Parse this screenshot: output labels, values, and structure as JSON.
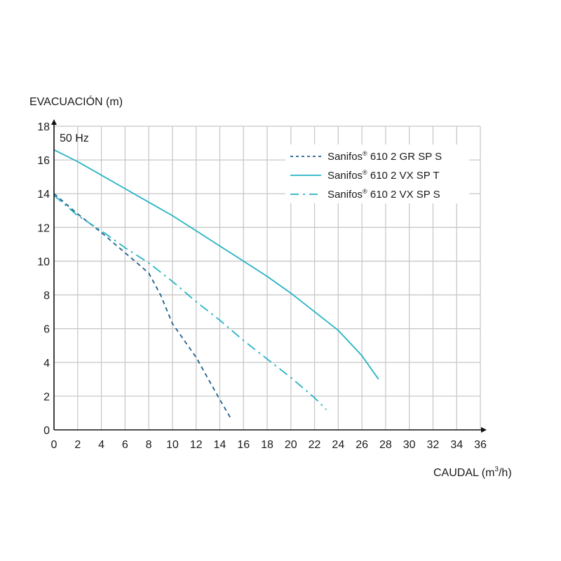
{
  "chart_data": {
    "type": "line",
    "ylabel": "EVACUACIÓN (m)",
    "xlabel_main": "CAUDAL (m",
    "xlabel_sup": "3",
    "xlabel_end": "/h)",
    "annotation": "50 Hz",
    "xlim": [
      0,
      36
    ],
    "ylim": [
      0,
      18
    ],
    "x_ticks": [
      0,
      2,
      4,
      6,
      8,
      10,
      12,
      14,
      16,
      18,
      20,
      22,
      24,
      26,
      28,
      30,
      32,
      34,
      36
    ],
    "y_ticks": [
      0,
      2,
      4,
      6,
      8,
      10,
      12,
      14,
      16,
      18
    ],
    "grid": true,
    "legend_position": "top-right",
    "series": [
      {
        "name_main": "Sanifos",
        "name_sup": "®",
        "name_rest": " 610 2 GR SP S",
        "style": "dashed",
        "color": "#1f5f8b",
        "points": [
          [
            0,
            14.0
          ],
          [
            2,
            12.8
          ],
          [
            4,
            11.7
          ],
          [
            6,
            10.5
          ],
          [
            8,
            9.3
          ],
          [
            9,
            8.0
          ],
          [
            10,
            6.3
          ],
          [
            12,
            4.3
          ],
          [
            14,
            1.8
          ],
          [
            15,
            0.6
          ]
        ]
      },
      {
        "name_main": "Sanifos",
        "name_sup": "®",
        "name_rest": " 610 2 VX SP T",
        "style": "solid",
        "color": "#26b3c4",
        "points": [
          [
            0,
            16.6
          ],
          [
            2,
            15.9
          ],
          [
            4,
            15.1
          ],
          [
            6,
            14.3
          ],
          [
            8,
            13.5
          ],
          [
            10,
            12.7
          ],
          [
            12,
            11.8
          ],
          [
            14,
            10.9
          ],
          [
            16,
            10.0
          ],
          [
            18,
            9.1
          ],
          [
            20,
            8.1
          ],
          [
            22,
            7.0
          ],
          [
            24,
            5.9
          ],
          [
            26,
            4.4
          ],
          [
            27.4,
            3.0
          ]
        ]
      },
      {
        "name_main": "Sanifos",
        "name_sup": "®",
        "name_rest": " 610 2 VX SP S",
        "style": "dashdot",
        "color": "#26b3c4",
        "points": [
          [
            0,
            13.9
          ],
          [
            2,
            12.7
          ],
          [
            4,
            11.8
          ],
          [
            6,
            10.8
          ],
          [
            8,
            9.9
          ],
          [
            10,
            8.8
          ],
          [
            12,
            7.6
          ],
          [
            14,
            6.5
          ],
          [
            16,
            5.3
          ],
          [
            18,
            4.2
          ],
          [
            20,
            3.1
          ],
          [
            22,
            1.9
          ],
          [
            23,
            1.2
          ]
        ]
      }
    ]
  }
}
